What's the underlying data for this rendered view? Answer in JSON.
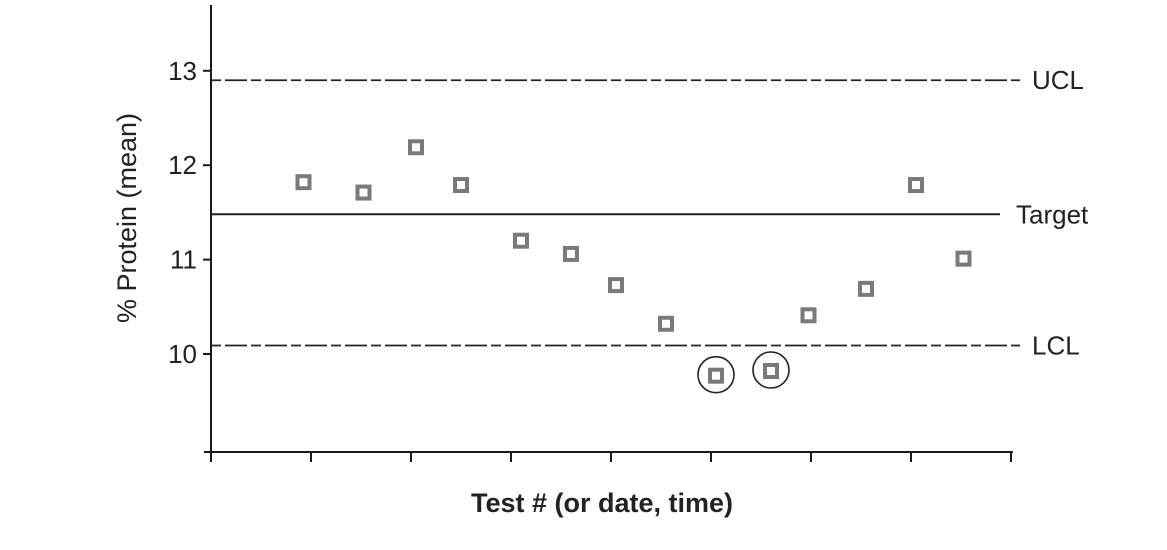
{
  "chart_data": {
    "type": "scatter",
    "title": "",
    "xlabel": "Test # (or date, time)",
    "ylabel": "% Protein (mean)",
    "ylim": [
      9,
      13.7
    ],
    "yticks": [
      10,
      11,
      12,
      13
    ],
    "xlim": [
      0,
      16
    ],
    "xticks": [
      0,
      2,
      4,
      6,
      8,
      10,
      12,
      14,
      16
    ],
    "grid": false,
    "legend": "none",
    "marker": "square",
    "marker_color": "#7a7a7a",
    "series": [
      {
        "x": [
          1.85,
          3.05,
          4.1,
          5.0,
          6.2,
          7.2,
          8.1,
          9.1,
          10.1,
          11.2,
          11.95,
          13.1,
          14.1,
          15.05
        ],
        "y": [
          11.82,
          11.71,
          12.19,
          11.79,
          11.2,
          11.06,
          10.73,
          10.32,
          9.77,
          9.82,
          10.41,
          10.69,
          11.79,
          11.01
        ],
        "flagged": [
          false,
          false,
          false,
          false,
          false,
          false,
          false,
          false,
          true,
          true,
          false,
          false,
          false,
          false
        ]
      }
    ],
    "reference_lines": [
      {
        "label": "UCL",
        "value": 12.9,
        "style": "dashed"
      },
      {
        "label": "Target",
        "value": 11.48,
        "style": "solid"
      },
      {
        "label": "LCL",
        "value": 10.09,
        "style": "dashed"
      }
    ]
  }
}
